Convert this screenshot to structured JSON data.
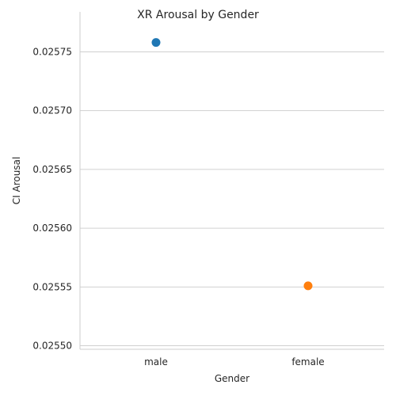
{
  "chart_data": {
    "type": "scatter",
    "title": "XR Arousal by Gender",
    "xlabel": "Gender",
    "ylabel": "CI Arousal",
    "categories": [
      "male",
      "female"
    ],
    "values": [
      0.025758,
      0.025551
    ],
    "colors": [
      "#1f77b4",
      "#ff7f0e"
    ],
    "ylim": [
      0.025497,
      0.025784
    ],
    "yticks": [
      0.0255,
      0.02555,
      0.0256,
      0.02565,
      0.0257,
      0.02575
    ],
    "ytick_labels": [
      "0.02550",
      "0.02555",
      "0.02560",
      "0.02565",
      "0.02570",
      "0.02575"
    ],
    "grid": "horizontal"
  }
}
